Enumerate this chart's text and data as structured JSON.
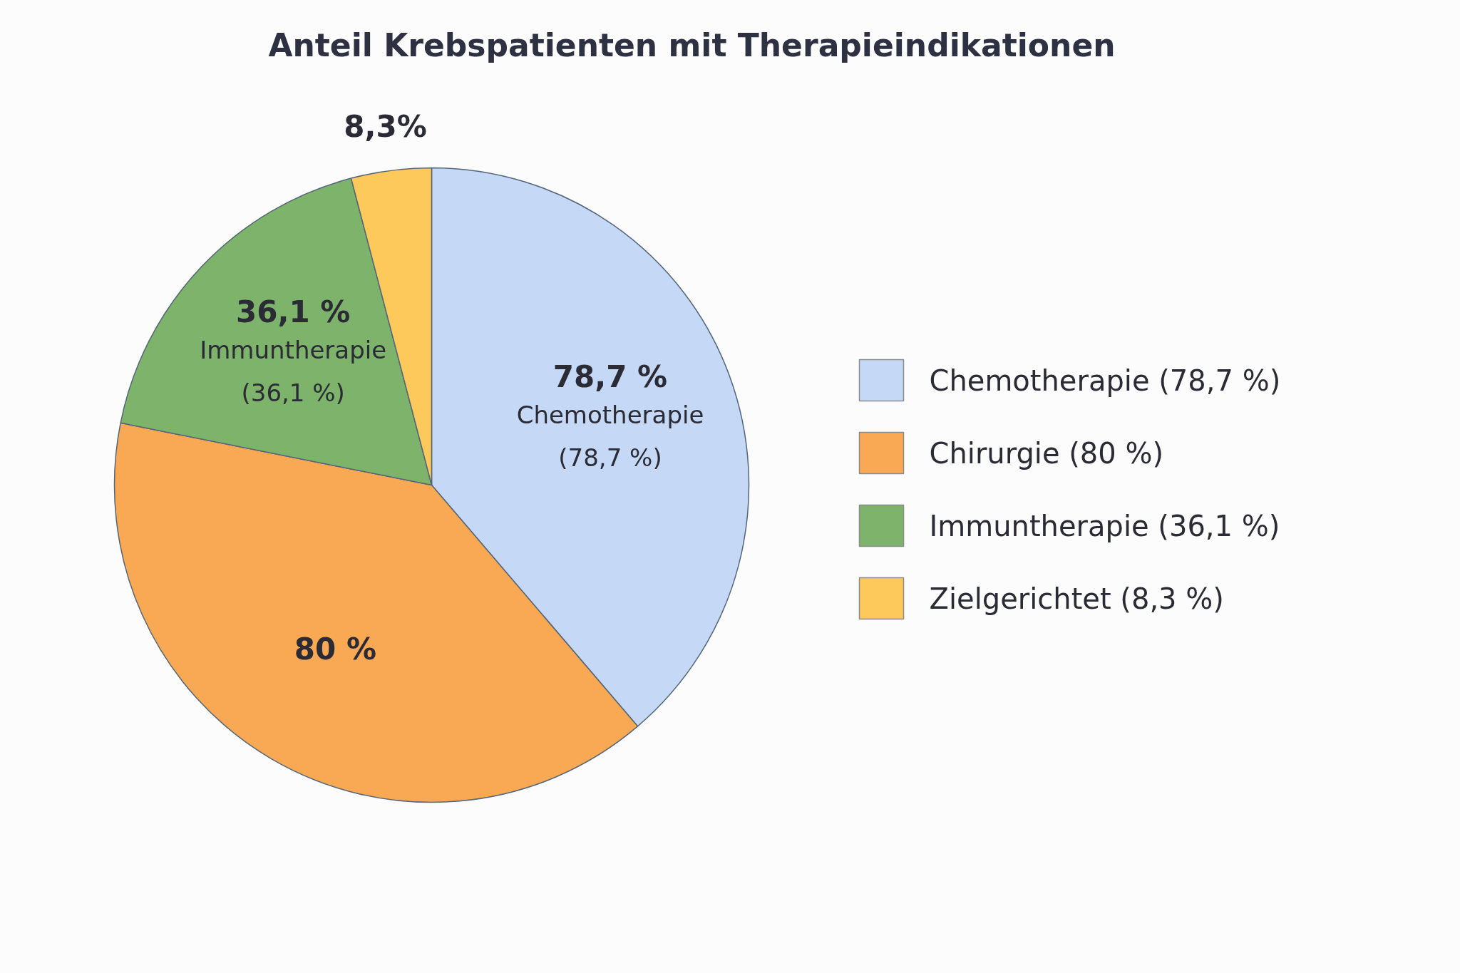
{
  "chart_data": {
    "type": "pie",
    "title": "Anteil Krebspatienten mit Therapieindikationen",
    "categories": [
      "Chemotherapie (78,7 %)",
      "Chirurgie (80 %)",
      "Immuntherapie (36,1 %)",
      "Zielgerichtet (8,3 %)"
    ],
    "values": [
      78.7,
      80,
      36.1,
      8.3
    ],
    "colors": [
      "#c5d8f5",
      "#f9a953",
      "#7db36a",
      "#fcc95a"
    ],
    "value_labels": [
      "78,7 %\nChemotherapie\n(78,7 %)",
      "80 %",
      "36,1 %\nImmuntherapie\n(36,1 %)",
      "8,3%"
    ],
    "legend": "right"
  }
}
